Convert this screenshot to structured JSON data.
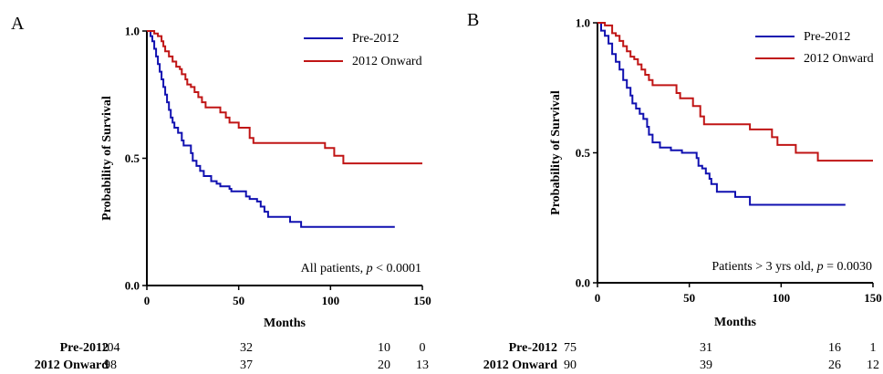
{
  "chart_data": [
    {
      "panel": "A",
      "type": "line",
      "step": true,
      "xlabel": "Months",
      "ylabel": "Probability of Survival",
      "xlim": [
        0,
        150
      ],
      "ylim": [
        0,
        1
      ],
      "xticks": [
        "0",
        "50",
        "100",
        "150"
      ],
      "yticks": [
        "0.0",
        "0.5",
        "1.0"
      ],
      "grid": false,
      "legend_position": "top-right",
      "annotation_text": "All patients, ",
      "annotation_p": "p",
      "annotation_value": " < 0.0001",
      "series": [
        {
          "name": "Pre-2012",
          "color": "#1010b0",
          "points": [
            [
              0,
              1.0
            ],
            [
              2,
              0.98
            ],
            [
              3,
              0.96
            ],
            [
              4,
              0.93
            ],
            [
              5,
              0.9
            ],
            [
              6,
              0.87
            ],
            [
              7,
              0.84
            ],
            [
              8,
              0.81
            ],
            [
              9,
              0.78
            ],
            [
              10,
              0.75
            ],
            [
              11,
              0.72
            ],
            [
              12,
              0.69
            ],
            [
              13,
              0.66
            ],
            [
              14,
              0.64
            ],
            [
              15,
              0.62
            ],
            [
              17,
              0.6
            ],
            [
              19,
              0.57
            ],
            [
              20,
              0.55
            ],
            [
              24,
              0.52
            ],
            [
              25,
              0.49
            ],
            [
              27,
              0.47
            ],
            [
              29,
              0.45
            ],
            [
              31,
              0.43
            ],
            [
              35,
              0.41
            ],
            [
              38,
              0.4
            ],
            [
              40,
              0.39
            ],
            [
              45,
              0.38
            ],
            [
              46,
              0.37
            ],
            [
              54,
              0.35
            ],
            [
              56,
              0.34
            ],
            [
              60,
              0.33
            ],
            [
              62,
              0.31
            ],
            [
              64,
              0.29
            ],
            [
              66,
              0.27
            ],
            [
              78,
              0.25
            ],
            [
              84,
              0.23
            ],
            [
              135,
              0.23
            ]
          ]
        },
        {
          "name": "2012 Onward",
          "color": "#c01515",
          "points": [
            [
              0,
              1.0
            ],
            [
              4,
              0.99
            ],
            [
              6,
              0.98
            ],
            [
              8,
              0.96
            ],
            [
              9,
              0.94
            ],
            [
              10,
              0.92
            ],
            [
              12,
              0.9
            ],
            [
              14,
              0.88
            ],
            [
              16,
              0.86
            ],
            [
              18,
              0.85
            ],
            [
              19,
              0.83
            ],
            [
              21,
              0.81
            ],
            [
              22,
              0.79
            ],
            [
              24,
              0.78
            ],
            [
              26,
              0.76
            ],
            [
              28,
              0.74
            ],
            [
              30,
              0.72
            ],
            [
              32,
              0.7
            ],
            [
              40,
              0.68
            ],
            [
              43,
              0.66
            ],
            [
              45,
              0.64
            ],
            [
              50,
              0.62
            ],
            [
              56,
              0.58
            ],
            [
              58,
              0.56
            ],
            [
              97,
              0.54
            ],
            [
              102,
              0.51
            ],
            [
              107,
              0.48
            ],
            [
              150,
              0.48
            ]
          ]
        }
      ],
      "risk_table": {
        "rows": [
          {
            "label": "Pre-2012",
            "values": [
              "104",
              "32",
              "10",
              "0"
            ]
          },
          {
            "label": "2012 Onward",
            "values": [
              "98",
              "37",
              "20",
              "13"
            ]
          }
        ]
      }
    },
    {
      "panel": "B",
      "type": "line",
      "step": true,
      "xlabel": "Months",
      "ylabel": "Probability of Survival",
      "xlim": [
        0,
        150
      ],
      "ylim": [
        0,
        1
      ],
      "xticks": [
        "0",
        "50",
        "100",
        "150"
      ],
      "yticks": [
        "0.0",
        "0.5",
        "1.0"
      ],
      "grid": false,
      "legend_position": "top-right",
      "annotation_text": "Patients > 3 yrs old, ",
      "annotation_p": "p",
      "annotation_value": " = 0.0030",
      "series": [
        {
          "name": "Pre-2012",
          "color": "#1010b0",
          "points": [
            [
              0,
              1.0
            ],
            [
              2,
              0.97
            ],
            [
              4,
              0.95
            ],
            [
              6,
              0.92
            ],
            [
              8,
              0.88
            ],
            [
              10,
              0.85
            ],
            [
              12,
              0.82
            ],
            [
              14,
              0.78
            ],
            [
              16,
              0.75
            ],
            [
              18,
              0.72
            ],
            [
              19,
              0.69
            ],
            [
              21,
              0.67
            ],
            [
              23,
              0.65
            ],
            [
              25,
              0.63
            ],
            [
              27,
              0.6
            ],
            [
              28,
              0.57
            ],
            [
              30,
              0.54
            ],
            [
              34,
              0.52
            ],
            [
              40,
              0.51
            ],
            [
              46,
              0.5
            ],
            [
              54,
              0.48
            ],
            [
              55,
              0.45
            ],
            [
              57,
              0.44
            ],
            [
              59,
              0.42
            ],
            [
              61,
              0.4
            ],
            [
              62,
              0.38
            ],
            [
              65,
              0.35
            ],
            [
              75,
              0.33
            ],
            [
              83,
              0.3
            ],
            [
              135,
              0.3
            ]
          ]
        },
        {
          "name": "2012 Onward",
          "color": "#c01515",
          "points": [
            [
              0,
              1.0
            ],
            [
              4,
              0.99
            ],
            [
              8,
              0.96
            ],
            [
              10,
              0.95
            ],
            [
              12,
              0.93
            ],
            [
              14,
              0.91
            ],
            [
              16,
              0.89
            ],
            [
              18,
              0.87
            ],
            [
              20,
              0.86
            ],
            [
              22,
              0.84
            ],
            [
              24,
              0.82
            ],
            [
              26,
              0.8
            ],
            [
              28,
              0.78
            ],
            [
              30,
              0.76
            ],
            [
              43,
              0.73
            ],
            [
              45,
              0.71
            ],
            [
              52,
              0.68
            ],
            [
              56,
              0.64
            ],
            [
              58,
              0.61
            ],
            [
              83,
              0.59
            ],
            [
              95,
              0.56
            ],
            [
              98,
              0.53
            ],
            [
              108,
              0.5
            ],
            [
              120,
              0.47
            ],
            [
              150,
              0.47
            ]
          ]
        }
      ],
      "risk_table": {
        "rows": [
          {
            "label": "Pre-2012",
            "values": [
              "75",
              "31",
              "16",
              "1"
            ]
          },
          {
            "label": "2012 Onward",
            "values": [
              "90",
              "39",
              "26",
              "12"
            ]
          }
        ]
      }
    }
  ]
}
